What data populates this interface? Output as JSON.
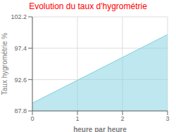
{
  "chart_data": {
    "type": "area",
    "title": "Evolution du taux d'hygrométrie",
    "title_color": "#ff0000",
    "x_label": "heure par heure",
    "y_label": "Taux hygrométrie %",
    "x": [
      0,
      3
    ],
    "values": [
      89.0,
      99.5
    ],
    "color": "#7ecfdf",
    "xlim": [
      0,
      3
    ],
    "ylim": [
      87.8,
      102.2
    ],
    "xticks": [
      0,
      1,
      2,
      3
    ],
    "yticks": [
      87.8,
      92.6,
      97.4,
      102.2
    ],
    "grid": true
  }
}
